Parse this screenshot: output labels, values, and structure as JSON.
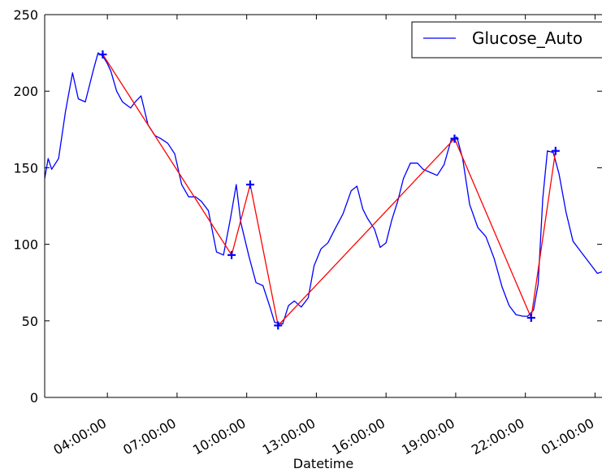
{
  "chart_data": {
    "type": "line",
    "title": "",
    "xlabel": "Datetime",
    "ylabel": "",
    "x_range_hours": [
      1.3,
      25.3
    ],
    "ylim": [
      0,
      250
    ],
    "x_ticks": [
      {
        "label": "04:00:00",
        "hours": 4
      },
      {
        "label": "07:00:00",
        "hours": 7
      },
      {
        "label": "10:00:00",
        "hours": 10
      },
      {
        "label": "13:00:00",
        "hours": 13
      },
      {
        "label": "16:00:00",
        "hours": 16
      },
      {
        "label": "19:00:00",
        "hours": 19
      },
      {
        "label": "22:00:00",
        "hours": 22
      },
      {
        "label": "01:00:00",
        "hours": 25
      }
    ],
    "y_ticks": [
      0,
      50,
      100,
      150,
      200,
      250
    ],
    "grid": false,
    "legend": {
      "position": "top-right",
      "entries": [
        "Glucose_Auto"
      ]
    },
    "series": [
      {
        "name": "Glucose_Auto",
        "color": "#0000ff",
        "x_hours": [
          1.3,
          1.45,
          1.6,
          1.9,
          2.2,
          2.5,
          2.75,
          3.05,
          3.4,
          3.6,
          3.8,
          4.0,
          4.15,
          4.4,
          4.65,
          5.0,
          5.2,
          5.45,
          5.75,
          6.05,
          6.3,
          6.6,
          6.9,
          7.2,
          7.5,
          7.8,
          8.05,
          8.35,
          8.7,
          9.0,
          9.3,
          9.55,
          9.75,
          10.1,
          10.4,
          10.7,
          11.0,
          11.2,
          11.55,
          11.8,
          12.05,
          12.35,
          12.65,
          12.9,
          13.2,
          13.5,
          13.8,
          14.15,
          14.5,
          14.75,
          15.0,
          15.2,
          15.5,
          15.75,
          16.0,
          16.25,
          16.5,
          16.75,
          17.05,
          17.35,
          17.6,
          17.9,
          18.2,
          18.5,
          18.8,
          19.05,
          19.3,
          19.6,
          19.95,
          20.3,
          20.65,
          21.0,
          21.3,
          21.6,
          21.9,
          22.1,
          22.35,
          22.55,
          22.75,
          22.95,
          23.2,
          23.45,
          23.75,
          24.05,
          24.35,
          24.65,
          24.9,
          25.1,
          25.3
        ],
        "values": [
          143,
          156,
          149,
          156,
          187,
          212,
          195,
          193,
          214,
          225,
          223,
          218,
          213,
          200,
          193,
          189,
          193,
          197,
          178,
          171,
          169,
          166,
          159,
          139,
          131,
          131,
          128,
          122,
          95,
          93,
          117,
          139,
          114,
          92,
          75,
          73,
          59,
          49,
          48,
          60,
          63,
          59,
          65,
          86,
          97,
          101,
          110,
          120,
          135,
          138,
          123,
          117,
          110,
          98,
          101,
          116,
          128,
          143,
          153,
          153,
          149,
          147,
          145,
          152,
          168,
          170,
          156,
          126,
          111,
          105,
          91,
          72,
          60,
          54,
          53,
          53,
          57,
          74,
          130,
          161,
          160,
          146,
          121,
          102,
          96,
          90,
          85,
          81,
          82
        ]
      },
      {
        "name": "",
        "color": "#ff0000",
        "x_hours": [
          3.8,
          9.35,
          10.15,
          11.35,
          18.95,
          22.25,
          23.3
        ],
        "values": [
          224,
          93,
          139,
          47,
          169,
          52,
          161
        ]
      }
    ],
    "markers": {
      "symbol": "+",
      "color": "#0000ff",
      "x_hours": [
        3.8,
        9.35,
        10.15,
        11.35,
        18.95,
        22.25,
        23.3
      ],
      "values": [
        224,
        93,
        139,
        47,
        169,
        52,
        161
      ]
    }
  }
}
